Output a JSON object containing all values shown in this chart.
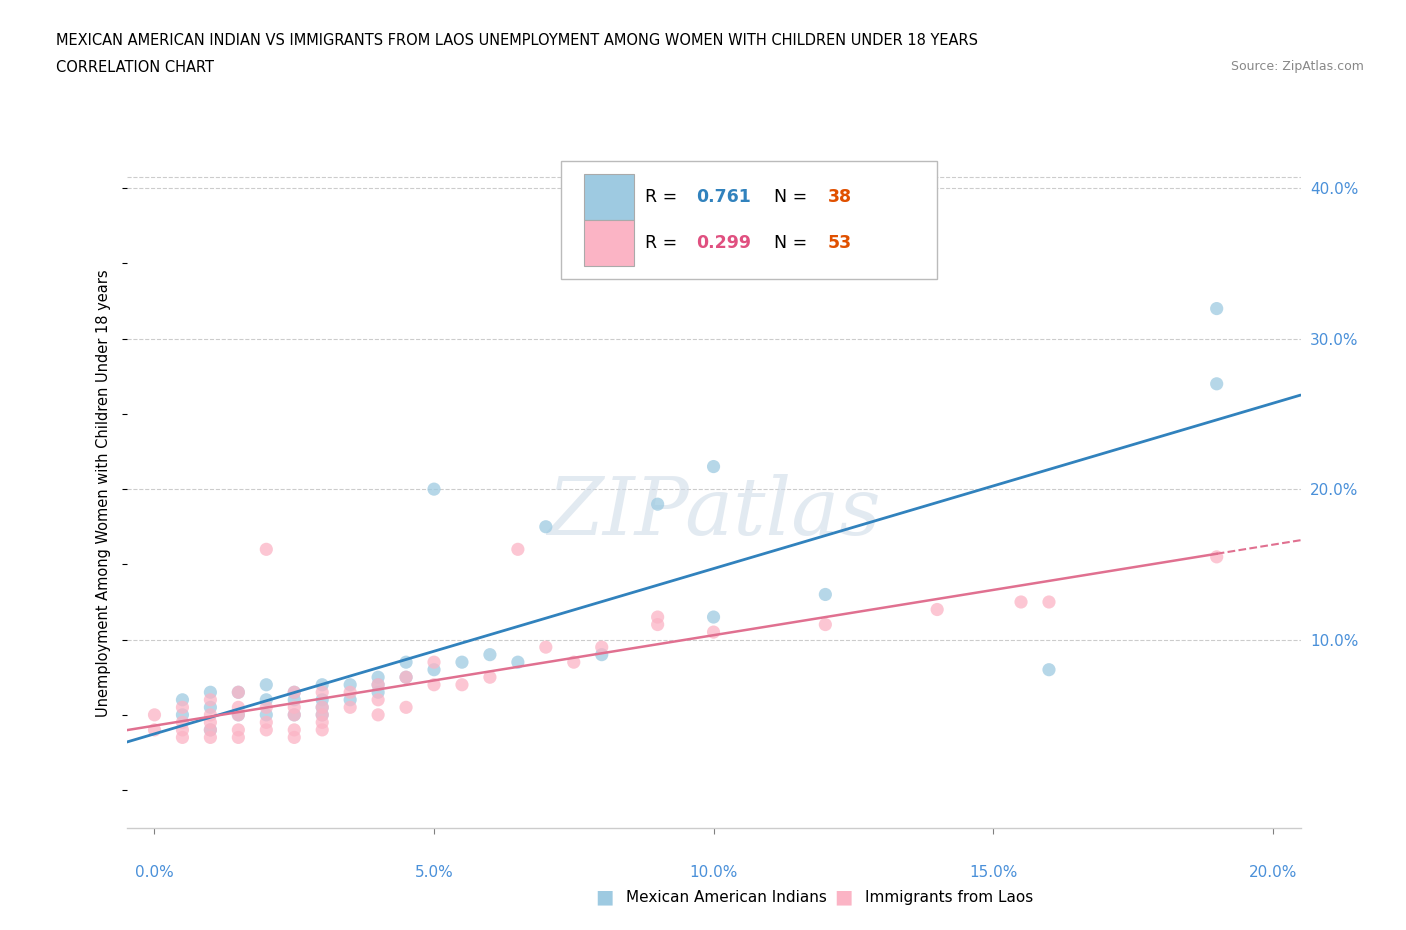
{
  "title_line1": "MEXICAN AMERICAN INDIAN VS IMMIGRANTS FROM LAOS UNEMPLOYMENT AMONG WOMEN WITH CHILDREN UNDER 18 YEARS",
  "title_line2": "CORRELATION CHART",
  "source": "Source: ZipAtlas.com",
  "ylabel": "Unemployment Among Women with Children Under 18 years",
  "blue_R": 0.761,
  "blue_N": 38,
  "pink_R": 0.299,
  "pink_N": 53,
  "blue_label": "Mexican American Indians",
  "pink_label": "Immigrants from Laos",
  "blue_scatter_color": "#9ecae1",
  "pink_scatter_color": "#fbb4c5",
  "blue_line_color": "#3182bd",
  "pink_line_color": "#e07090",
  "watermark_text": "ZIPatlas",
  "blue_x": [
    0.005,
    0.005,
    0.01,
    0.01,
    0.01,
    0.015,
    0.015,
    0.02,
    0.02,
    0.02,
    0.025,
    0.025,
    0.025,
    0.03,
    0.03,
    0.03,
    0.03,
    0.035,
    0.035,
    0.04,
    0.04,
    0.04,
    0.045,
    0.045,
    0.05,
    0.05,
    0.055,
    0.06,
    0.065,
    0.07,
    0.08,
    0.09,
    0.1,
    0.1,
    0.12,
    0.16,
    0.19,
    0.19
  ],
  "blue_y": [
    0.05,
    0.06,
    0.04,
    0.055,
    0.065,
    0.05,
    0.065,
    0.05,
    0.06,
    0.07,
    0.05,
    0.06,
    0.065,
    0.05,
    0.055,
    0.06,
    0.07,
    0.06,
    0.07,
    0.065,
    0.07,
    0.075,
    0.075,
    0.085,
    0.08,
    0.2,
    0.085,
    0.09,
    0.085,
    0.175,
    0.09,
    0.19,
    0.115,
    0.215,
    0.13,
    0.08,
    0.27,
    0.32
  ],
  "pink_x": [
    0.0,
    0.0,
    0.005,
    0.005,
    0.005,
    0.005,
    0.01,
    0.01,
    0.01,
    0.01,
    0.01,
    0.015,
    0.015,
    0.015,
    0.015,
    0.015,
    0.02,
    0.02,
    0.02,
    0.02,
    0.025,
    0.025,
    0.025,
    0.025,
    0.025,
    0.03,
    0.03,
    0.03,
    0.03,
    0.03,
    0.035,
    0.035,
    0.04,
    0.04,
    0.04,
    0.045,
    0.045,
    0.05,
    0.05,
    0.055,
    0.06,
    0.065,
    0.07,
    0.075,
    0.08,
    0.09,
    0.09,
    0.1,
    0.12,
    0.14,
    0.155,
    0.16,
    0.19
  ],
  "pink_y": [
    0.04,
    0.05,
    0.035,
    0.04,
    0.045,
    0.055,
    0.035,
    0.04,
    0.045,
    0.05,
    0.06,
    0.035,
    0.04,
    0.05,
    0.055,
    0.065,
    0.04,
    0.045,
    0.055,
    0.16,
    0.035,
    0.04,
    0.05,
    0.055,
    0.065,
    0.04,
    0.045,
    0.05,
    0.055,
    0.065,
    0.055,
    0.065,
    0.05,
    0.06,
    0.07,
    0.055,
    0.075,
    0.07,
    0.085,
    0.07,
    0.075,
    0.16,
    0.095,
    0.085,
    0.095,
    0.11,
    0.115,
    0.105,
    0.11,
    0.12,
    0.125,
    0.125,
    0.155
  ],
  "xlim": [
    -0.005,
    0.205
  ],
  "ylim": [
    -0.025,
    0.42
  ],
  "x_ticks": [
    0.0,
    0.05,
    0.1,
    0.15,
    0.2
  ],
  "y_ticks_right": [
    0.1,
    0.2,
    0.3,
    0.4
  ],
  "y_tick_labels_right": [
    "10.0%",
    "20.0%",
    "30.0%",
    "40.0%"
  ]
}
